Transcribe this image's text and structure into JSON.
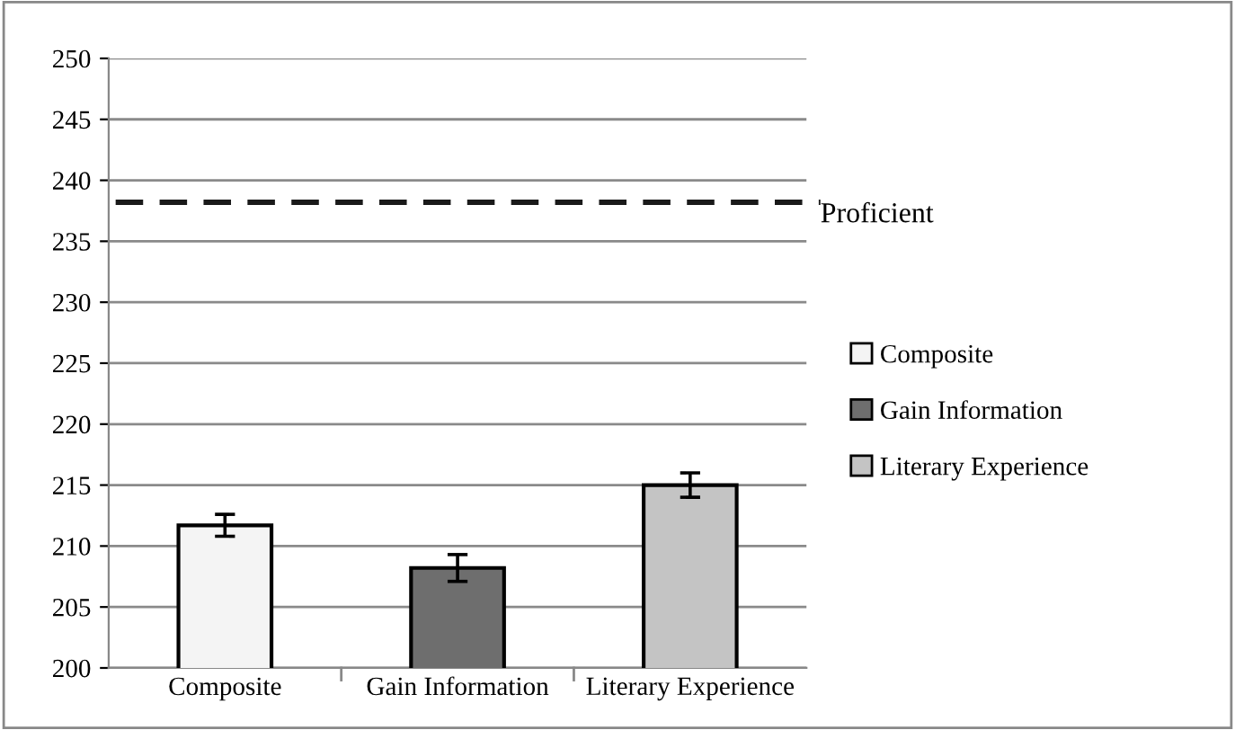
{
  "chart_data": {
    "type": "bar",
    "categories": [
      "Composite",
      "Gain Information",
      "Literary Experience"
    ],
    "series": [
      {
        "name": "Composite",
        "color": "#f4f4f4",
        "values": [
          211.7,
          null,
          null
        ],
        "errors": [
          0.9,
          null,
          null
        ]
      },
      {
        "name": "Gain Information",
        "color": "#6e6e6e",
        "values": [
          null,
          208.2,
          null
        ],
        "errors": [
          null,
          1.1,
          null
        ]
      },
      {
        "name": "Literary Experience",
        "color": "#c4c4c4",
        "values": [
          null,
          null,
          215.0
        ],
        "errors": [
          null,
          null,
          1.0
        ]
      }
    ],
    "ylim": [
      200,
      250
    ],
    "yticks": [
      200,
      205,
      210,
      215,
      220,
      225,
      230,
      235,
      240,
      245,
      250
    ],
    "ref_lines": [
      {
        "axis": "y",
        "value": 238.2,
        "label": "Proficient",
        "color": "#1a1a1a",
        "line_style": "dashed"
      }
    ],
    "grid": "y",
    "legend": "right"
  }
}
